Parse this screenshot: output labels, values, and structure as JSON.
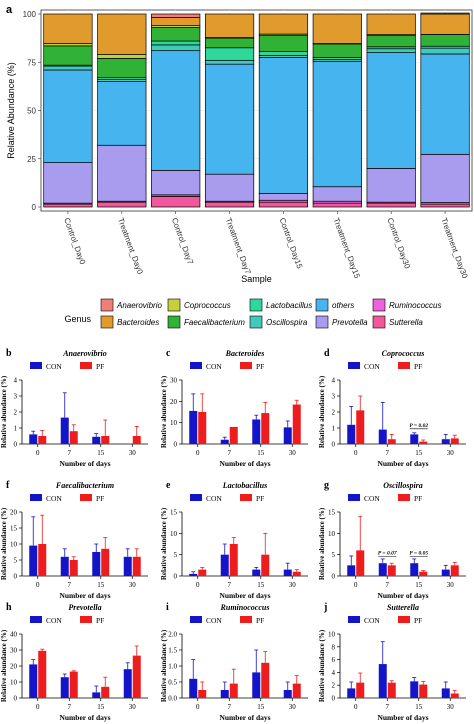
{
  "colors": {
    "Anaerovibrio": "#f07f7a",
    "Bacteroides": "#e09b2c",
    "Coprococcus": "#c6cf3c",
    "Faecalibacterium": "#2fb236",
    "Lactobacillus": "#2dd89a",
    "others": "#46b4ee",
    "Oscillospira": "#40c9bd",
    "Prevotella": "#a99bee",
    "Ruminococcus": "#ee62e0",
    "Sutterella": "#f0589b",
    "CON": "#1414c8",
    "PF": "#ee1c1c"
  },
  "chart_data": [
    {
      "panel": "a",
      "type": "bar",
      "stacked": true,
      "xlabel": "Sample",
      "ylabel": "Relative Abundance (%)",
      "ylim": [
        0,
        100
      ],
      "yticks": [
        "0",
        "25",
        "50",
        "75",
        "100"
      ],
      "grid": true,
      "legend_title": "Genus",
      "legend_position": "bottom",
      "legend": [
        "Anaerovibrio",
        "Coprococcus",
        "Lactobacillus",
        "others",
        "Ruminococcus",
        "Bacteroides",
        "Faecalibacterium",
        "Oscillospira",
        "Prevotella",
        "Sutterella"
      ],
      "categories": [
        "Control_Day0",
        "Treatment_Day0",
        "Control_Day7",
        "Treatment_Day7",
        "Control_Day15",
        "Treatment_Day15",
        "Control_Day30",
        "Treatment_Day30"
      ],
      "stack_order": [
        "Sutterella",
        "Ruminococcus",
        "Prevotella",
        "others",
        "Oscillospira",
        "Lactobacillus",
        "Faecalibacterium",
        "Coprococcus",
        "Bacteroides",
        "Anaerovibrio"
      ],
      "series": [
        {
          "name": "Sutterella",
          "values": [
            1.5,
            2.5,
            5.5,
            2.5,
            2.5,
            2.0,
            2.0,
            1.5
          ]
        },
        {
          "name": "Ruminococcus",
          "values": [
            0.5,
            0.5,
            0.8,
            0.5,
            1.0,
            1.0,
            0.5,
            0.8
          ]
        },
        {
          "name": "Prevotella",
          "values": [
            21,
            29,
            12.7,
            14,
            3.5,
            7.5,
            17.5,
            25
          ]
        },
        {
          "name": "others",
          "values": [
            48,
            33,
            62,
            57,
            70.5,
            65,
            60,
            52
          ]
        },
        {
          "name": "Oscillospira",
          "values": [
            2,
            1,
            3,
            2,
            1,
            1,
            2,
            3
          ]
        },
        {
          "name": "Lactobacillus",
          "values": [
            0.5,
            1,
            2,
            6.5,
            2,
            1,
            1,
            1
          ]
        },
        {
          "name": "Faecalibacterium",
          "values": [
            10,
            10,
            7,
            5,
            8.5,
            7,
            6,
            6
          ]
        },
        {
          "name": "Coprococcus",
          "values": [
            1.2,
            2.1,
            1,
            0.3,
            0.6,
            0.2,
            0.3,
            0.1
          ]
        },
        {
          "name": "Bacteroides",
          "values": [
            15.3,
            20.9,
            4.2,
            12.2,
            10.4,
            15.3,
            10.7,
            10.6
          ]
        },
        {
          "name": "Anaerovibrio",
          "values": [
            0,
            0,
            1.8,
            0,
            0,
            0,
            0,
            0.5
          ]
        }
      ]
    },
    {
      "panel": "b",
      "title": "Anaerovibrio",
      "type": "bar",
      "xlabel": "Number of days",
      "ylabel": "Relative abundance (%)",
      "categories": [
        "0",
        "7",
        "15",
        "30"
      ],
      "ylim": [
        0,
        4
      ],
      "yticks": [
        0,
        1,
        2,
        3,
        4
      ],
      "series": [
        {
          "name": "CON",
          "values": [
            0.6,
            1.65,
            0.45,
            0
          ],
          "errors": [
            0.2,
            1.55,
            0.2,
            0
          ]
        },
        {
          "name": "PF",
          "values": [
            0.5,
            0.8,
            0.5,
            0.5
          ],
          "errors": [
            0.35,
            0.4,
            1.0,
            0.6
          ]
        }
      ],
      "annotations": []
    },
    {
      "panel": "c",
      "title": "Bacteroides",
      "type": "bar",
      "xlabel": "Number of days",
      "ylabel": "Relative abundance (%)",
      "categories": [
        "0",
        "7",
        "15",
        "30"
      ],
      "ylim": [
        0,
        30
      ],
      "yticks": [
        0,
        10,
        20,
        30
      ],
      "series": [
        {
          "name": "CON",
          "values": [
            15.5,
            2,
            11.5,
            7.8
          ],
          "errors": [
            8,
            1.2,
            2,
            3
          ]
        },
        {
          "name": "PF",
          "values": [
            15,
            8,
            14.5,
            18.5
          ],
          "errors": [
            8.5,
            0,
            5,
            2
          ]
        }
      ],
      "annotations": []
    },
    {
      "panel": "d",
      "title": "Coprococcus",
      "type": "bar",
      "xlabel": "Number of days",
      "ylabel": "Relative abundance (%)",
      "categories": [
        "0",
        "7",
        "15",
        "30"
      ],
      "ylim": [
        0,
        4
      ],
      "yticks": [
        0,
        1,
        2,
        3,
        4
      ],
      "series": [
        {
          "name": "CON",
          "values": [
            1.2,
            0.9,
            0.6,
            0.3
          ],
          "errors": [
            1.15,
            1.7,
            0.1,
            0.3
          ]
        },
        {
          "name": "PF",
          "values": [
            2.1,
            0.3,
            0.15,
            0.35
          ],
          "errors": [
            0.9,
            0.3,
            0.1,
            0.2
          ]
        }
      ],
      "annotations": [
        {
          "text": "P = 0.02",
          "between": [
            2,
            2
          ],
          "y": 0.95
        }
      ]
    },
    {
      "panel": "f",
      "title": "Faecalibacterium",
      "type": "bar",
      "xlabel": "Number of days",
      "ylabel": "Relative abundance (%)",
      "categories": [
        "0",
        "7",
        "15",
        "30"
      ],
      "ylim": [
        0,
        20
      ],
      "yticks": [
        0,
        5,
        10,
        15,
        20
      ],
      "series": [
        {
          "name": "CON",
          "values": [
            9.5,
            6,
            7.5,
            6
          ],
          "errors": [
            9,
            2.5,
            2.5,
            2.5
          ]
        },
        {
          "name": "PF",
          "values": [
            10,
            5,
            8.5,
            6
          ],
          "errors": [
            9,
            1,
            3.5,
            2.5
          ]
        }
      ],
      "annotations": []
    },
    {
      "panel": "e",
      "title": "Lactobacillus",
      "type": "bar",
      "xlabel": "Number of days",
      "ylabel": "Relative abundance (%)",
      "categories": [
        "0",
        "7",
        "15",
        "30"
      ],
      "ylim": [
        0,
        15
      ],
      "yticks": [
        0,
        5,
        10,
        15
      ],
      "series": [
        {
          "name": "CON",
          "values": [
            0.5,
            5,
            1.5,
            1.5
          ],
          "errors": [
            0.5,
            2.5,
            0.5,
            1.5
          ]
        },
        {
          "name": "PF",
          "values": [
            1.5,
            7.5,
            5,
            1
          ],
          "errors": [
            0.5,
            1.5,
            5,
            0.5
          ]
        }
      ],
      "annotations": []
    },
    {
      "panel": "g",
      "title": "Oscillospira",
      "type": "bar",
      "xlabel": "Number of days",
      "ylabel": "Relative abundance (%)",
      "categories": [
        "0",
        "7",
        "15",
        "30"
      ],
      "ylim": [
        0,
        15
      ],
      "yticks": [
        0,
        5,
        10,
        15
      ],
      "series": [
        {
          "name": "CON",
          "values": [
            2.5,
            3,
            3,
            1.5
          ],
          "errors": [
            2.2,
            1,
            1,
            1
          ]
        },
        {
          "name": "PF",
          "values": [
            6,
            2.5,
            1,
            2.5
          ],
          "errors": [
            8,
            0.5,
            0.3,
            0.7
          ]
        }
      ],
      "annotations": [
        {
          "text": "P = 0.07",
          "between": [
            1,
            1
          ],
          "y": 4.6
        },
        {
          "text": "P = 0.05",
          "between": [
            2,
            2
          ],
          "y": 4.6
        }
      ]
    },
    {
      "panel": "h",
      "title": "Prevotella",
      "type": "bar",
      "xlabel": "Number of days",
      "ylabel": "Relative abundance (%)",
      "categories": [
        "0",
        "7",
        "15",
        "30"
      ],
      "ylim": [
        0,
        40
      ],
      "yticks": [
        0,
        10,
        20,
        30,
        40
      ],
      "series": [
        {
          "name": "CON",
          "values": [
            21,
            13,
            3.5,
            18
          ],
          "errors": [
            3,
            2,
            4,
            4
          ]
        },
        {
          "name": "PF",
          "values": [
            29.5,
            16.5,
            7,
            26.5
          ],
          "errors": [
            1,
            0.5,
            6,
            6
          ]
        }
      ],
      "annotations": []
    },
    {
      "panel": "i",
      "title": "Ruminococcus",
      "type": "bar",
      "xlabel": "Number of days",
      "ylabel": "Relative abundance (%)",
      "categories": [
        "0",
        "7",
        "15",
        "30"
      ],
      "ylim": [
        0,
        2.0
      ],
      "yticks": [
        0.0,
        0.5,
        1.0,
        1.5,
        2.0
      ],
      "series": [
        {
          "name": "CON",
          "values": [
            0.6,
            0.25,
            0.8,
            0.25
          ],
          "errors": [
            0.6,
            0.25,
            0.7,
            0.25
          ]
        },
        {
          "name": "PF",
          "values": [
            0.25,
            0.45,
            1.1,
            0.45
          ],
          "errors": [
            0.25,
            0.45,
            0.35,
            0.25
          ]
        }
      ],
      "annotations": []
    },
    {
      "panel": "j",
      "title": "Sutterella",
      "type": "bar",
      "xlabel": "Number of days",
      "ylabel": "Relative abundance (%)",
      "categories": [
        "0",
        "7",
        "15",
        "30"
      ],
      "ylim": [
        0,
        10
      ],
      "yticks": [
        0,
        2,
        4,
        6,
        8,
        10
      ],
      "series": [
        {
          "name": "CON",
          "values": [
            1.5,
            5.3,
            2.6,
            1.5
          ],
          "errors": [
            1,
            3.5,
            0.6,
            1
          ]
        },
        {
          "name": "PF",
          "values": [
            2.4,
            2.4,
            2.1,
            0.7
          ],
          "errors": [
            1.5,
            0.3,
            0.5,
            0.5
          ]
        }
      ],
      "annotations": []
    }
  ]
}
